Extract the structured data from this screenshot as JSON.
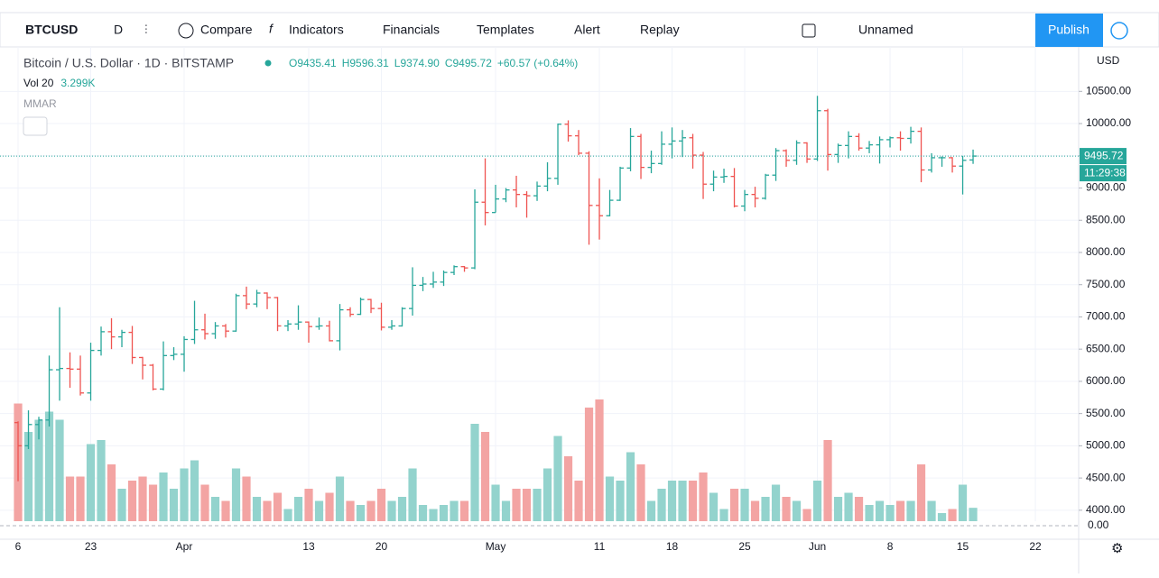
{
  "toolbar": {
    "symbol": "BTCUSD",
    "interval": "D",
    "compare": "Compare",
    "indicators": "Indicators",
    "financials": "Financials",
    "templates": "Templates",
    "alert": "Alert",
    "replay": "Replay",
    "layout": "Unnamed",
    "publish": "Publish"
  },
  "chart_data": {
    "type": "ohlc",
    "title": "Bitcoin / U.S. Dollar · 1D · BITSTAMP",
    "ohlc_legend": [
      "O9435.41",
      "H9596.31",
      "L9374.90",
      "C9495.72",
      "+60.57 (+0.64%)"
    ],
    "volume_label": "Vol 20",
    "volume_value": "3.299K",
    "indicator_label": "MMAR",
    "currency": "USD",
    "countdown": "11:29:38",
    "subpane_label": "0.00",
    "up_color": "#26a69a",
    "down_color": "#ef5350",
    "volume_up_color": "#93d3cd",
    "volume_down_color": "#f3a4a3",
    "grid": true,
    "xlim": [
      -1.74,
      102.17
    ],
    "xticks": [
      {
        "value": 0,
        "label": "6"
      },
      {
        "value": 7,
        "label": "23"
      },
      {
        "value": 16,
        "label": "Apr"
      },
      {
        "value": 28,
        "label": "13"
      },
      {
        "value": 35,
        "label": "20"
      },
      {
        "value": 46,
        "label": "May"
      },
      {
        "value": 56,
        "label": "11"
      },
      {
        "value": 63,
        "label": "18"
      },
      {
        "value": 70,
        "label": "25"
      },
      {
        "value": 77,
        "label": "Jun"
      },
      {
        "value": 84,
        "label": "8"
      },
      {
        "value": 91,
        "label": "15"
      },
      {
        "value": 98,
        "label": "22"
      }
    ],
    "ylim": [
      3830,
      11190
    ],
    "yticks": [
      {
        "value": 4000,
        "label": "4000.00"
      },
      {
        "value": 4500,
        "label": "4500.00"
      },
      {
        "value": 5000,
        "label": "5000.00"
      },
      {
        "value": 5500,
        "label": "5500.00"
      },
      {
        "value": 6000,
        "label": "6000.00"
      },
      {
        "value": 6500,
        "label": "6500.00"
      },
      {
        "value": 7000,
        "label": "7000.00"
      },
      {
        "value": 7500,
        "label": "7500.00"
      },
      {
        "value": 8000,
        "label": "8000.00"
      },
      {
        "value": 8500,
        "label": "8500.00"
      },
      {
        "value": 9000,
        "label": "9000.00"
      },
      {
        "value": 9500,
        "label": "9500.00"
      },
      {
        "value": 10000,
        "label": "10000.00"
      },
      {
        "value": 10500,
        "label": "10500.00"
      }
    ],
    "ohlc": [
      [
        5360,
        5380,
        4450,
        5000
      ],
      [
        5000,
        5550,
        4950,
        5330
      ],
      [
        5330,
        5450,
        5100,
        5400
      ],
      [
        5400,
        6400,
        5300,
        6180
      ],
      [
        6180,
        7150,
        5700,
        6200
      ],
      [
        6200,
        6450,
        5900,
        6190
      ],
      [
        6190,
        6400,
        5780,
        5820
      ],
      [
        5820,
        6600,
        5700,
        6480
      ],
      [
        6480,
        6850,
        6400,
        6770
      ],
      [
        6770,
        6980,
        6500,
        6690
      ],
      [
        6690,
        6800,
        6530,
        6760
      ],
      [
        6760,
        6860,
        6270,
        6370
      ],
      [
        6370,
        6380,
        6030,
        6250
      ],
      [
        6250,
        6270,
        5860,
        5880
      ],
      [
        5880,
        6620,
        5860,
        6400
      ],
      [
        6400,
        6530,
        6330,
        6420
      ],
      [
        6420,
        6700,
        6150,
        6650
      ],
      [
        6650,
        7250,
        6580,
        6800
      ],
      [
        6800,
        7050,
        6650,
        6740
      ],
      [
        6740,
        6920,
        6660,
        6860
      ],
      [
        6860,
        6890,
        6680,
        6780
      ],
      [
        6780,
        7360,
        6770,
        7330
      ],
      [
        7330,
        7470,
        7120,
        7200
      ],
      [
        7200,
        7420,
        7150,
        7370
      ],
      [
        7370,
        7380,
        7120,
        7300
      ],
      [
        7300,
        7310,
        6780,
        6860
      ],
      [
        6860,
        6950,
        6780,
        6890
      ],
      [
        6890,
        7180,
        6800,
        6920
      ],
      [
        6920,
        6930,
        6600,
        6850
      ],
      [
        6850,
        6990,
        6800,
        6860
      ],
      [
        6860,
        6940,
        6620,
        6630
      ],
      [
        6630,
        7200,
        6480,
        7110
      ],
      [
        7110,
        7150,
        7000,
        7040
      ],
      [
        7040,
        7300,
        7030,
        7270
      ],
      [
        7270,
        7280,
        7060,
        7130
      ],
      [
        7130,
        7220,
        6790,
        6840
      ],
      [
        6840,
        6950,
        6800,
        6860
      ],
      [
        6860,
        7150,
        6850,
        7130
      ],
      [
        7130,
        7770,
        7020,
        7490
      ],
      [
        7490,
        7620,
        7400,
        7510
      ],
      [
        7510,
        7700,
        7450,
        7540
      ],
      [
        7540,
        7720,
        7480,
        7690
      ],
      [
        7690,
        7800,
        7650,
        7780
      ],
      [
        7780,
        7790,
        7700,
        7760
      ],
      [
        7760,
        8980,
        7740,
        8780
      ],
      [
        8780,
        9460,
        8420,
        8620
      ],
      [
        8620,
        9050,
        8620,
        8830
      ],
      [
        8830,
        9000,
        8780,
        8970
      ],
      [
        8970,
        9190,
        8700,
        8900
      ],
      [
        8900,
        8950,
        8540,
        8880
      ],
      [
        8880,
        9100,
        8800,
        9030
      ],
      [
        9030,
        9400,
        8950,
        9150
      ],
      [
        9150,
        10000,
        9050,
        9990
      ],
      [
        9990,
        10050,
        9720,
        9810
      ],
      [
        9810,
        9900,
        9510,
        9540
      ],
      [
        9540,
        9570,
        8120,
        8730
      ],
      [
        8730,
        9150,
        8200,
        8570
      ],
      [
        8570,
        8970,
        8560,
        8810
      ],
      [
        8810,
        9330,
        8800,
        9310
      ],
      [
        9310,
        9930,
        9260,
        9800
      ],
      [
        9800,
        9840,
        9140,
        9320
      ],
      [
        9320,
        9580,
        9230,
        9380
      ],
      [
        9380,
        9880,
        9360,
        9680
      ],
      [
        9680,
        9940,
        9460,
        9730
      ],
      [
        9730,
        9900,
        9480,
        9780
      ],
      [
        9780,
        9840,
        9300,
        9510
      ],
      [
        9510,
        9560,
        8830,
        9060
      ],
      [
        9060,
        9270,
        8950,
        9170
      ],
      [
        9170,
        9300,
        9080,
        9180
      ],
      [
        9180,
        9310,
        8700,
        8720
      ],
      [
        8720,
        8970,
        8640,
        8900
      ],
      [
        8900,
        9020,
        8700,
        8840
      ],
      [
        8840,
        9220,
        8820,
        9200
      ],
      [
        9200,
        9620,
        9110,
        9580
      ],
      [
        9580,
        9600,
        9330,
        9430
      ],
      [
        9430,
        9740,
        9360,
        9700
      ],
      [
        9700,
        9710,
        9390,
        9450
      ],
      [
        9450,
        10430,
        9420,
        10200
      ],
      [
        10200,
        10230,
        9270,
        9520
      ],
      [
        9520,
        9690,
        9390,
        9660
      ],
      [
        9660,
        9880,
        9460,
        9800
      ],
      [
        9800,
        9850,
        9580,
        9620
      ],
      [
        9620,
        9730,
        9540,
        9670
      ],
      [
        9670,
        9800,
        9380,
        9750
      ],
      [
        9750,
        9800,
        9630,
        9780
      ],
      [
        9780,
        9880,
        9580,
        9770
      ],
      [
        9770,
        9950,
        9690,
        9880
      ],
      [
        9880,
        9940,
        9090,
        9280
      ],
      [
        9280,
        9540,
        9240,
        9470
      ],
      [
        9470,
        9490,
        9330,
        9470
      ],
      [
        9470,
        9480,
        9240,
        9340
      ],
      [
        9340,
        9500,
        8900,
        9430
      ],
      [
        9435.41,
        9596.31,
        9374.9,
        9495.72
      ]
    ],
    "volume": [
      29,
      22,
      25,
      27,
      25,
      11,
      11,
      19,
      20,
      14,
      8,
      10,
      11,
      9,
      12,
      8,
      13,
      15,
      9,
      6,
      5,
      13,
      11,
      6,
      5,
      7,
      3,
      6,
      8,
      5,
      7,
      11,
      5,
      4,
      5,
      8,
      5,
      6,
      13,
      4,
      3,
      4,
      5,
      5,
      24,
      22,
      9,
      5,
      8,
      8,
      8,
      13,
      21,
      16,
      10,
      28,
      30,
      11,
      10,
      17,
      14,
      5,
      8,
      10,
      10,
      10,
      12,
      7,
      3,
      8,
      8,
      5,
      6,
      9,
      6,
      5,
      3,
      10,
      20,
      6,
      7,
      6,
      4,
      5,
      4,
      5,
      5,
      14,
      5,
      2,
      3,
      9,
      3.299
    ]
  }
}
